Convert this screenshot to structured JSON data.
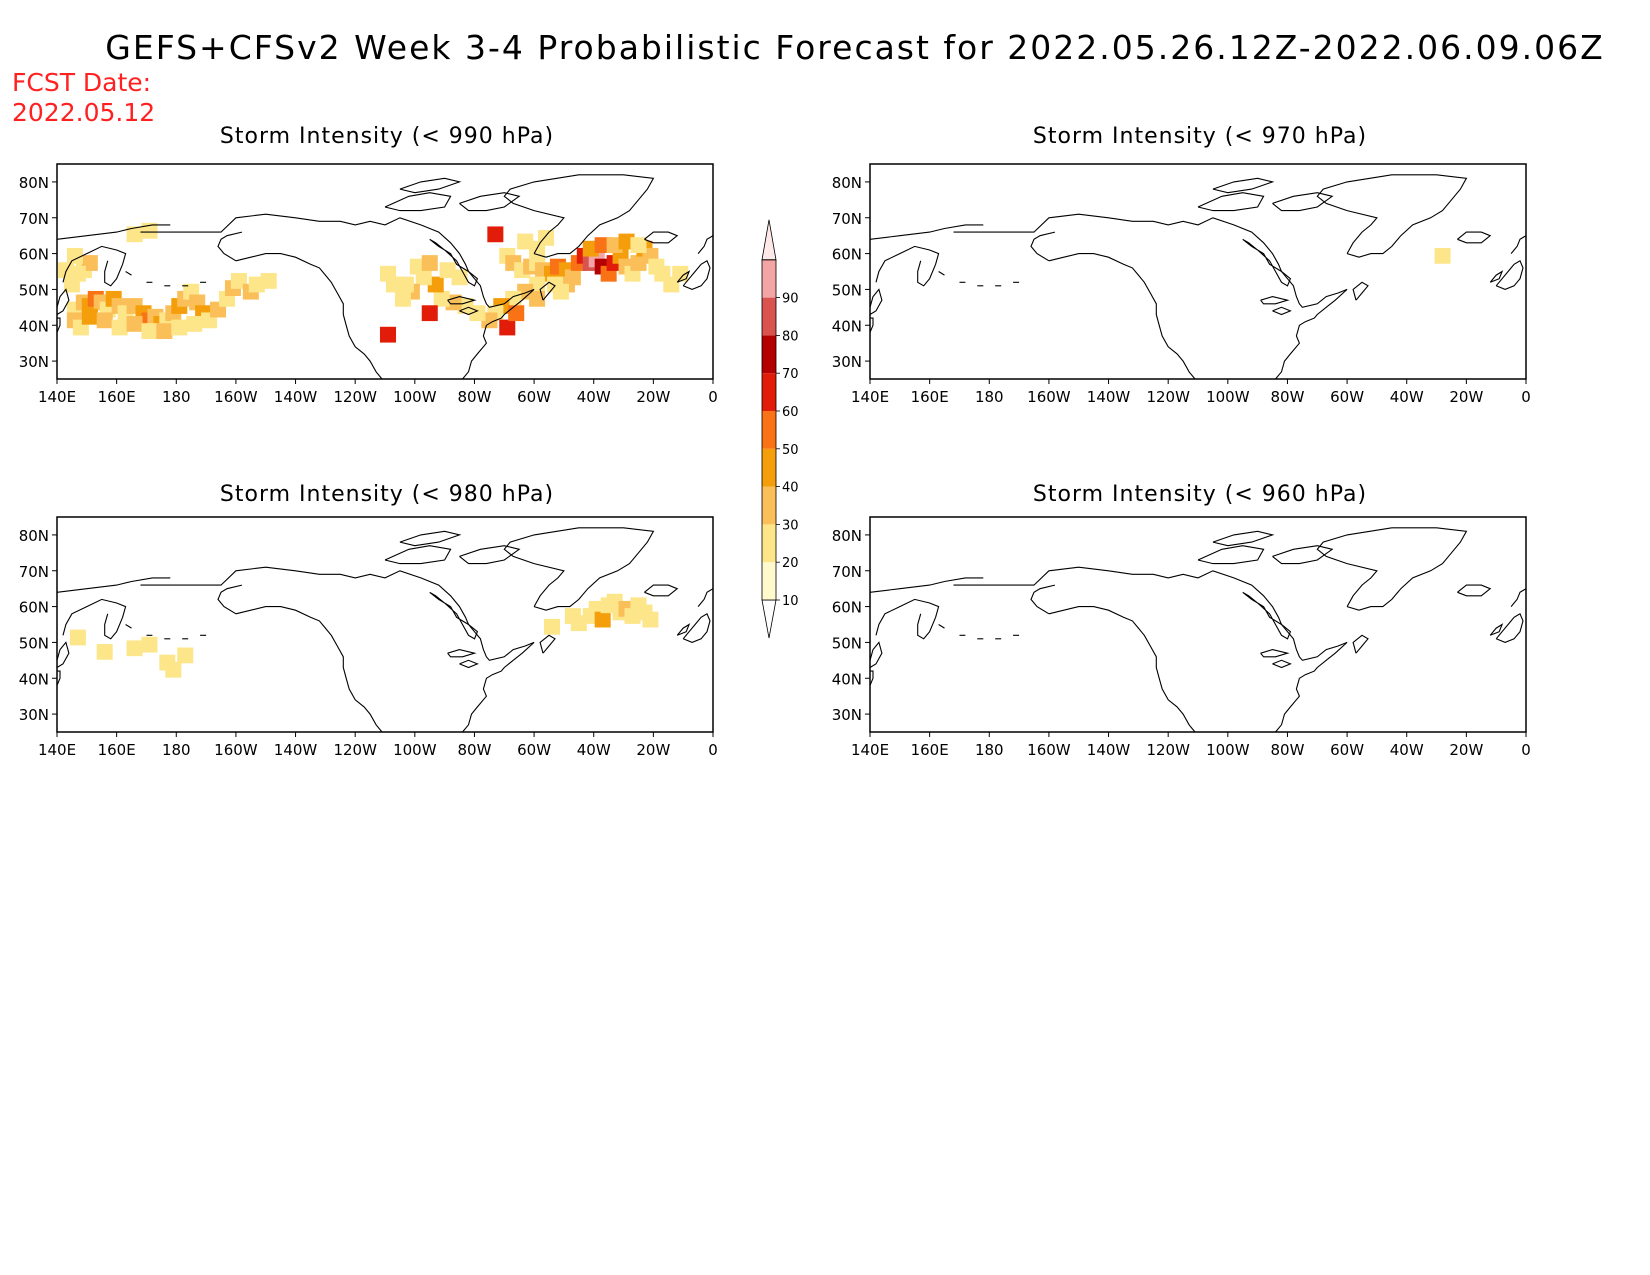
{
  "title": "GEFS+CFSv2 Week 3-4 Probabilistic Forecast for 2022.05.26.12Z-2022.06.09.06Z",
  "fcst_date_label": "FCST Date:",
  "fcst_date_value": "2022.05.12",
  "panels": [
    {
      "title": "Storm Intensity (< 990 hPa)",
      "threshold": "< 990 hPa"
    },
    {
      "title": "Storm Intensity (< 970 hPa)",
      "threshold": "< 970 hPa"
    },
    {
      "title": "Storm Intensity (< 980 hPa)",
      "threshold": "< 980 hPa"
    },
    {
      "title": "Storm Intensity (< 960 hPa)",
      "threshold": "< 960 hPa"
    }
  ],
  "lat_ticks": [
    "30N",
    "40N",
    "50N",
    "60N",
    "70N",
    "80N"
  ],
  "lon_ticks": [
    "140E",
    "160E",
    "180",
    "160W",
    "140W",
    "120W",
    "100W",
    "80W",
    "60W",
    "40W",
    "20W",
    "0"
  ],
  "colorbar": {
    "levels": [
      "10",
      "20",
      "30",
      "40",
      "50",
      "60",
      "70",
      "80",
      "90"
    ],
    "colors": [
      "#fffacd",
      "#fde68a",
      "#fbbf5a",
      "#f59e0b",
      "#f97316",
      "#e11d0a",
      "#b30000",
      "#d9534f",
      "#f3a5a5",
      "#ffe8e8"
    ]
  }
}
